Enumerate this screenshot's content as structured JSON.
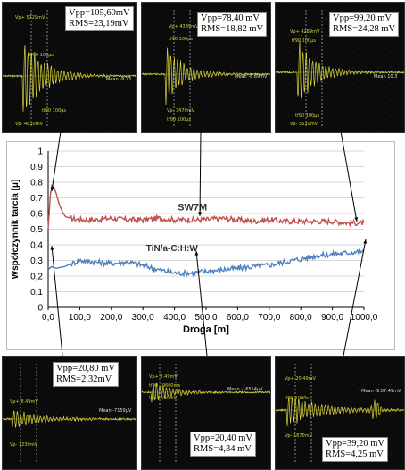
{
  "chart_data": {
    "type": "line",
    "xlabel": "Droga [m]",
    "ylabel": "Współczynnik tarcia [μ]",
    "xlim": [
      0,
      1000
    ],
    "ylim": [
      0,
      1
    ],
    "x_ticks": [
      "0,0",
      "100,0",
      "200,0",
      "300,0",
      "400,0",
      "500,0",
      "600,0",
      "700,0",
      "800,0",
      "900,0",
      "1000,0"
    ],
    "y_ticks": [
      "0",
      "0,1",
      "0,2",
      "0,3",
      "0,4",
      "0,5",
      "0,6",
      "0,7",
      "0,8",
      "0,9",
      "1"
    ],
    "grid": "horizontal",
    "series": [
      {
        "name": "SW7M",
        "color": "#c0504d",
        "points": [
          [
            0,
            0.5
          ],
          [
            3,
            0.6
          ],
          [
            7,
            0.72
          ],
          [
            12,
            0.78
          ],
          [
            18,
            0.77
          ],
          [
            25,
            0.73
          ],
          [
            35,
            0.66
          ],
          [
            45,
            0.61
          ],
          [
            55,
            0.58
          ],
          [
            70,
            0.57
          ],
          [
            100,
            0.56
          ],
          [
            150,
            0.56
          ],
          [
            200,
            0.57
          ],
          [
            250,
            0.56
          ],
          [
            300,
            0.56
          ],
          [
            350,
            0.57
          ],
          [
            400,
            0.56
          ],
          [
            450,
            0.56
          ],
          [
            500,
            0.56
          ],
          [
            550,
            0.57
          ],
          [
            600,
            0.56
          ],
          [
            650,
            0.55
          ],
          [
            700,
            0.56
          ],
          [
            750,
            0.55
          ],
          [
            800,
            0.55
          ],
          [
            850,
            0.55
          ],
          [
            900,
            0.55
          ],
          [
            950,
            0.54
          ],
          [
            1000,
            0.54
          ]
        ]
      },
      {
        "name": "TiN/a-C:H:W",
        "color": "#4f81bd",
        "points": [
          [
            0,
            0.24
          ],
          [
            10,
            0.26
          ],
          [
            25,
            0.25
          ],
          [
            50,
            0.26
          ],
          [
            75,
            0.28
          ],
          [
            100,
            0.3
          ],
          [
            150,
            0.29
          ],
          [
            200,
            0.28
          ],
          [
            250,
            0.29
          ],
          [
            300,
            0.27
          ],
          [
            350,
            0.24
          ],
          [
            400,
            0.22
          ],
          [
            450,
            0.22
          ],
          [
            500,
            0.23
          ],
          [
            550,
            0.24
          ],
          [
            600,
            0.25
          ],
          [
            650,
            0.26
          ],
          [
            700,
            0.27
          ],
          [
            750,
            0.29
          ],
          [
            800,
            0.31
          ],
          [
            850,
            0.33
          ],
          [
            900,
            0.34
          ],
          [
            950,
            0.35
          ],
          [
            1000,
            0.36
          ]
        ]
      }
    ]
  },
  "scopes": [
    {
      "vpp": "Vpp=105,60mV",
      "rms": "RMS=23,19mV",
      "vp_plus": "Vp+ 5729mV",
      "vp_minus": "Vp- 4830mV",
      "cursor_a": "tf90 100μs",
      "cursor_b": "tf90 100μs",
      "mean": "Mean -9.23"
    },
    {
      "vpp": "Vpp=78,40 mV",
      "rms": "RMS=18,82 mV",
      "vp_plus": "Vp+ 4389mV",
      "vp_minus": "Vp- 3470mV",
      "cursor_a": "tf90 100μs",
      "cursor_b": "tf90 100μs",
      "mean": "Mean -8.69mV"
    },
    {
      "vpp": "Vpp=99,20 mV",
      "rms": "RMS=24,28 mV",
      "vp_plus": "Vp+ 4289mV",
      "vp_minus": "Vp- 5630mV",
      "cursor_a": "tf90 100μs",
      "cursor_b": "tf90 100μs",
      "mean": "Mean 10.3"
    },
    {
      "vpp": "Vpp=20,80 mV",
      "rms": "RMS=2,32mV",
      "vp_plus": "Vp+ 8.49mV",
      "vp_minus": "Vp- 1230mV",
      "cursor_a": "",
      "cursor_b": "",
      "mean": "Mean -7159μV"
    },
    {
      "vpp": "Vpp=20,40 mV",
      "rms": "RMS=4,34 mV",
      "vp_plus": "Vp+ 8.49mV",
      "vp_minus": "Vp- 1590mV",
      "cursor_a": "tf90 10600ms",
      "cursor_b": "",
      "mean": "Mean -16554μV"
    },
    {
      "vpp": "Vpp=39,20 mV",
      "rms": "RMS=4,25 mV",
      "vp_plus": "Vp+ 20.49mV",
      "vp_minus": "Vp- 1870mV",
      "cursor_a": "tf90 1900s",
      "cursor_b": "",
      "mean": "Mean -9.07.49mV"
    }
  ],
  "colors": {
    "scope_trace": "#d8d53c",
    "scope_bg": "#0b0b0b",
    "connector": "#000000"
  }
}
